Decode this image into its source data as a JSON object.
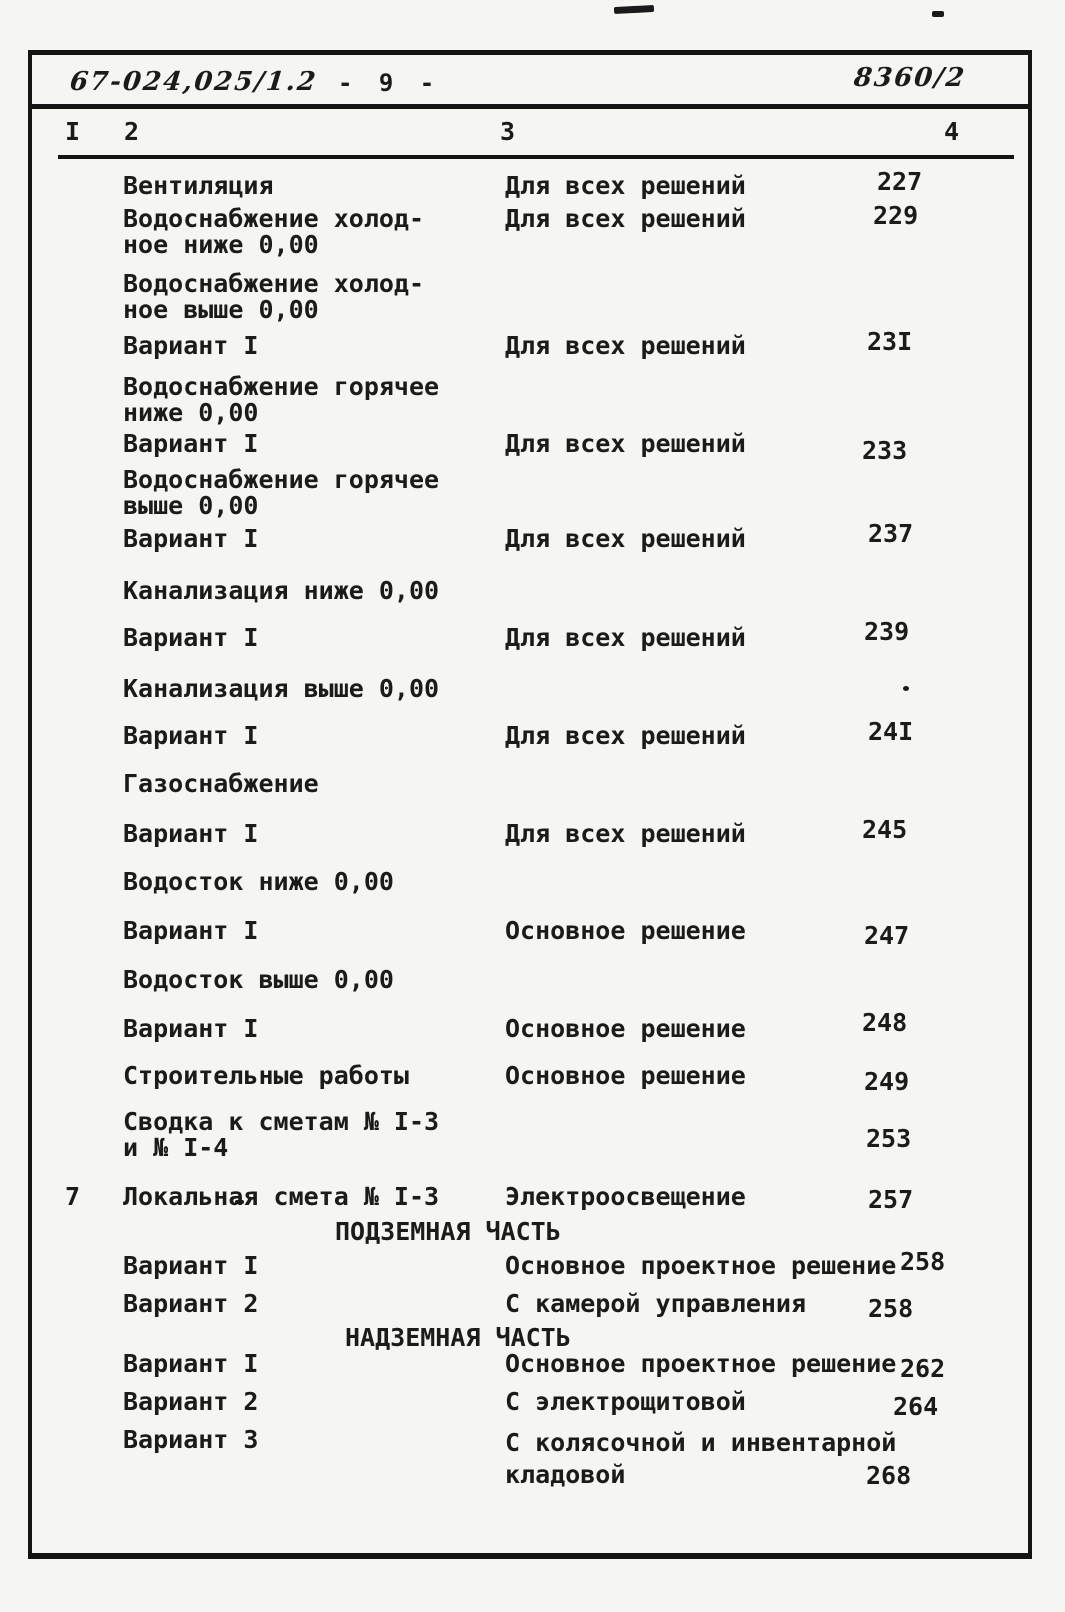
{
  "header": {
    "document_number": "67-024,025/1.2",
    "page_number": "- 9 -",
    "album_number": "8360/2"
  },
  "columns": [
    "I",
    "2",
    "3",
    "4"
  ],
  "toc": {
    "rows": [
      {
        "title": [
          "Вентиляция"
        ],
        "solution": [
          "Для всех решений"
        ],
        "page": "227"
      },
      {
        "title": [
          "Водоснабжение холод-",
          "ное ниже 0,00"
        ],
        "solution": [
          "Для всех решений"
        ],
        "page": "229"
      },
      {
        "title": [
          "Водоснабжение холод-",
          "ное выше 0,00"
        ]
      },
      {
        "title": [
          "Вариант I"
        ],
        "solution": [
          "Для всех решений"
        ],
        "page": "23I"
      },
      {
        "title": [
          "Водоснабжение горячее",
          "ниже 0,00"
        ]
      },
      {
        "title": [
          "Вариант I"
        ],
        "solution": [
          "Для всех решений"
        ],
        "page": "233"
      },
      {
        "title": [
          "Водоснабжение горячее",
          "выше 0,00"
        ]
      },
      {
        "title": [
          "Вариант I"
        ],
        "solution": [
          "Для всех решений"
        ],
        "page": "237"
      },
      {
        "title": [
          "Канализация ниже 0,00"
        ]
      },
      {
        "title": [
          "Вариант I"
        ],
        "solution": [
          "Для всех решений"
        ],
        "page": "239"
      },
      {
        "title": [
          "Канализация выше 0,00"
        ]
      },
      {
        "title": [
          "Вариант I"
        ],
        "solution": [
          "Для всех решений"
        ],
        "page": "24I"
      },
      {
        "title": [
          "Газоснабжение"
        ]
      },
      {
        "title": [
          "Вариант I"
        ],
        "solution": [
          "Для всех решений"
        ],
        "page": "245"
      },
      {
        "title": [
          "Водосток ниже 0,00"
        ]
      },
      {
        "title": [
          "Вариант I"
        ],
        "solution": [
          "Основное решение"
        ],
        "page": "247"
      },
      {
        "title": [
          "Водосток выше 0,00"
        ]
      },
      {
        "title": [
          "Вариант I"
        ],
        "solution": [
          "Основное решение"
        ],
        "page": "248"
      },
      {
        "title": [
          "Строительные работы"
        ],
        "solution": [
          "Основное решение"
        ],
        "page": "249"
      },
      {
        "title": [
          "Сводка к сметам № I-3",
          "и № I-4"
        ],
        "page": "253"
      },
      {
        "no": "7",
        "title": [
          "Локальная смета № I-3"
        ],
        "solution": [
          "Электроосвещение"
        ],
        "page": "257"
      },
      {
        "section": "ПОДЗЕМНАЯ ЧАСТЬ"
      },
      {
        "title": [
          "Вариант I"
        ],
        "solution": [
          "Основное проектное решение"
        ],
        "page": "258"
      },
      {
        "title": [
          "Вариант 2"
        ],
        "solution": [
          "С камерой управления"
        ],
        "page": "258"
      },
      {
        "section": "НАДЗЕМНАЯ ЧАСТЬ"
      },
      {
        "title": [
          "Вариант I"
        ],
        "solution": [
          "Основное проектное решение"
        ],
        "page": "262"
      },
      {
        "title": [
          "Вариант 2"
        ],
        "solution": [
          "С электрощитовой"
        ],
        "page": "264"
      },
      {
        "title": [
          "Вариант 3"
        ],
        "solution": [
          "С колясочной и инвентарной",
          "кладовой"
        ],
        "page": "268"
      }
    ]
  }
}
